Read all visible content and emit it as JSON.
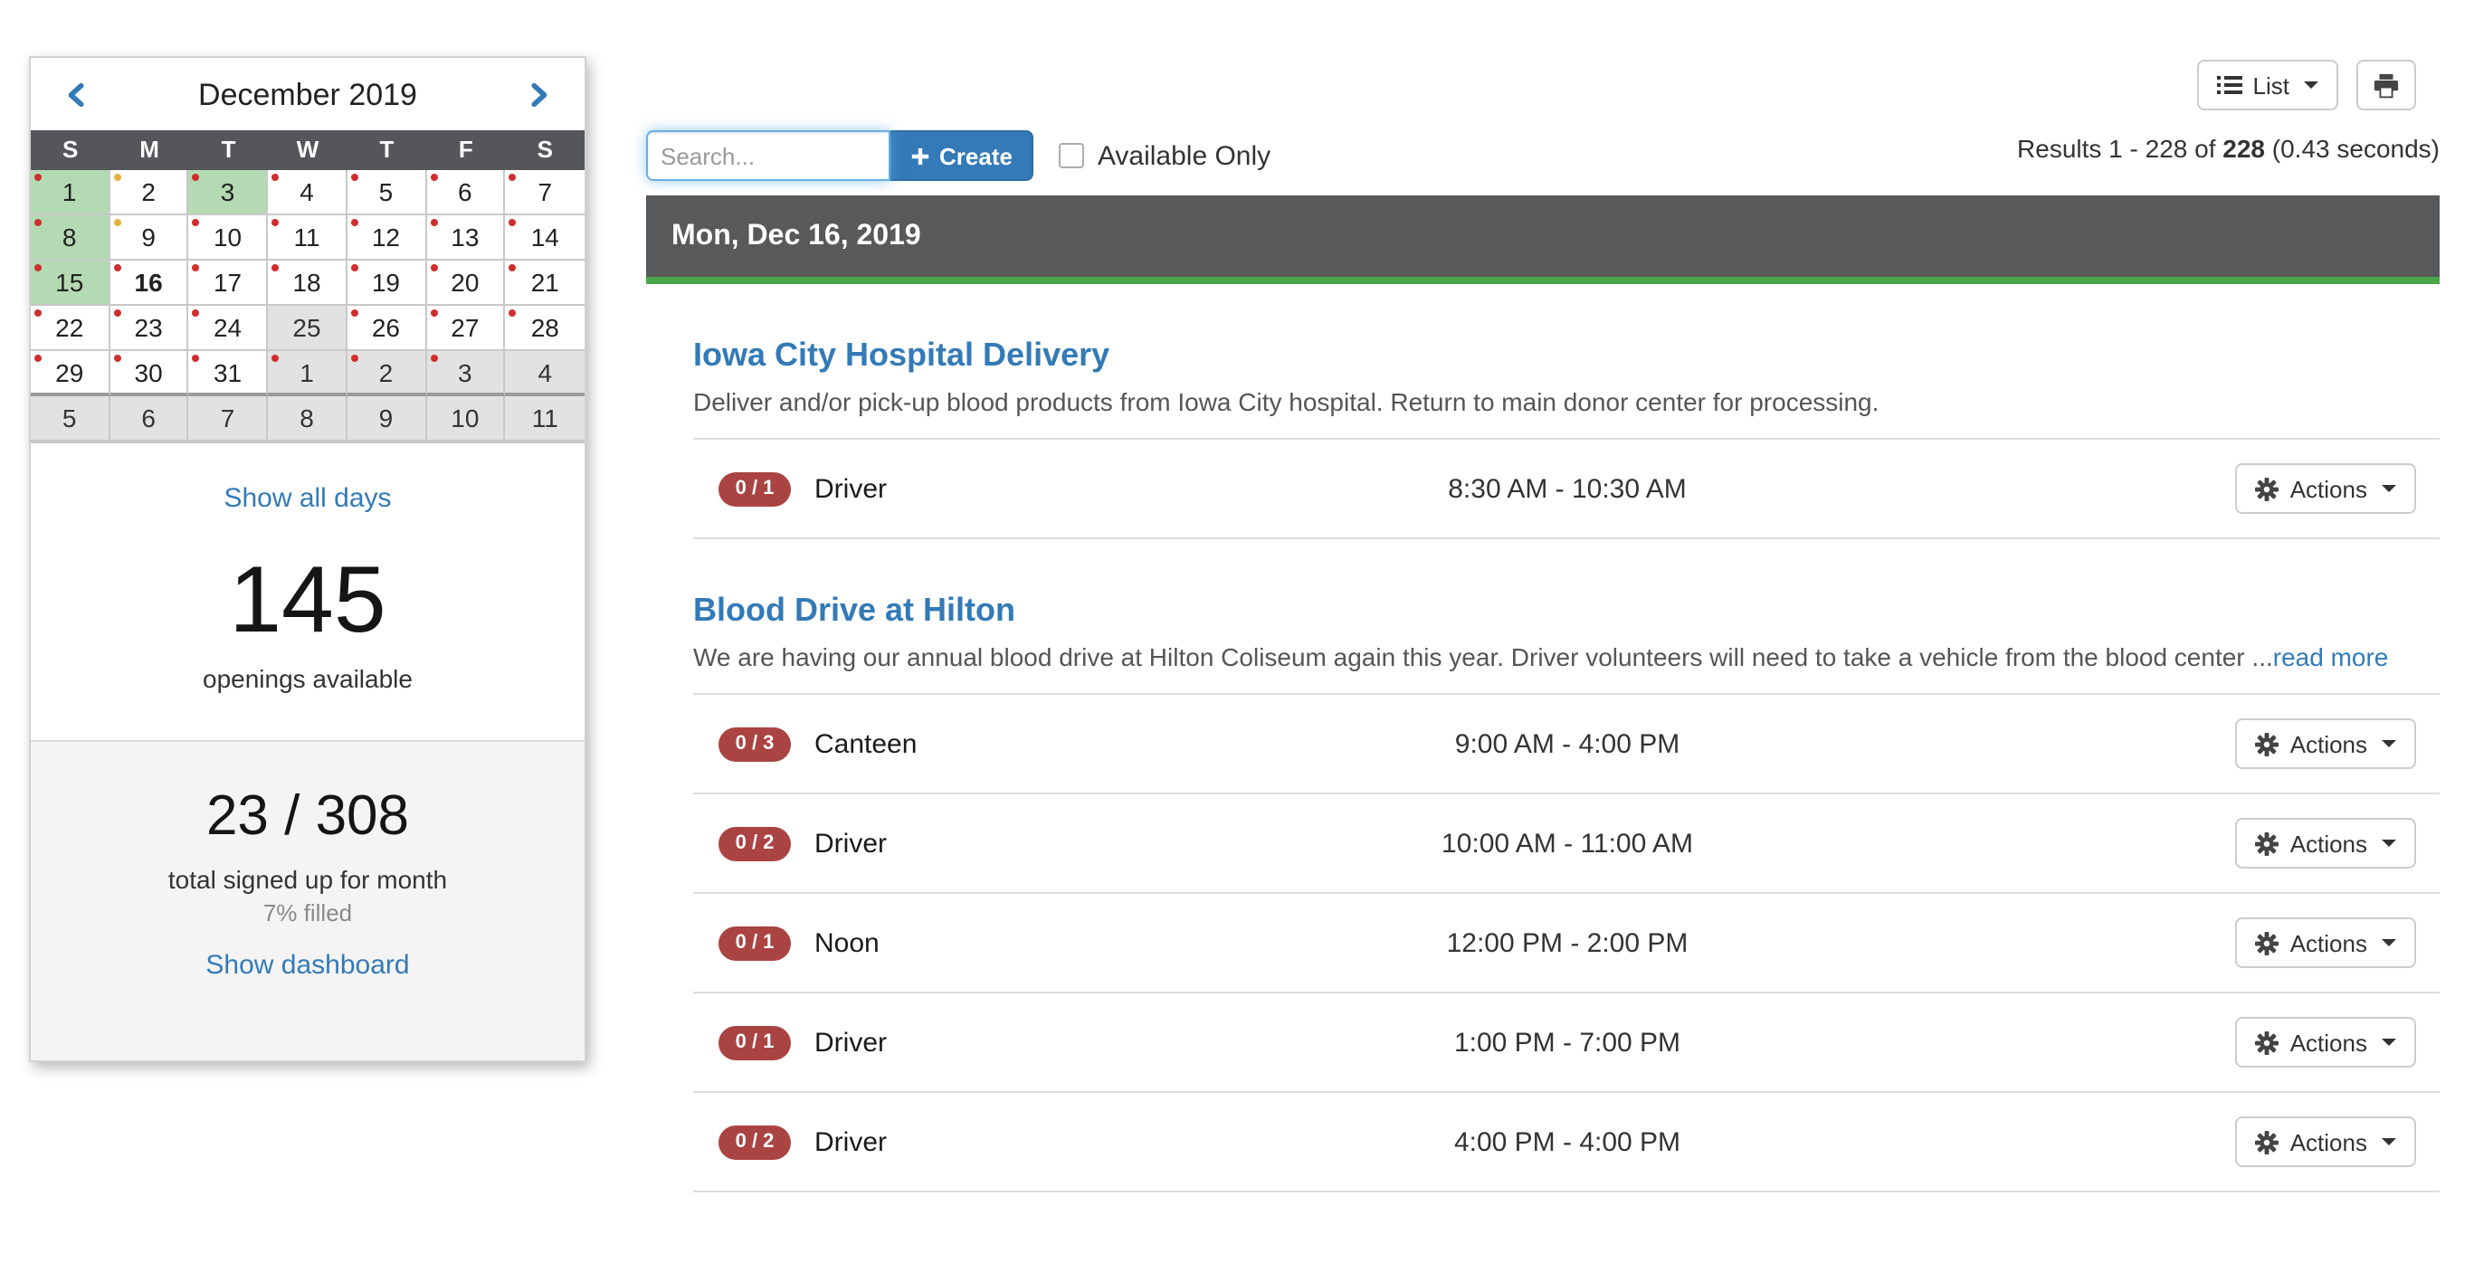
{
  "colors": {
    "accent_green": "#48a648",
    "badge_red": "#a94442",
    "link_blue": "#337ab7",
    "header_gray": "#58595b",
    "available_day_green": "#b4dab4",
    "inactive_day_gray": "#e2e2e2",
    "dot_red": "#cf2e2e",
    "dot_yellow": "#e8b23a",
    "create_button_blue": "#337ab7"
  },
  "labels": {
    "actions": "Actions"
  },
  "toolbar": {
    "view_button_label": "List",
    "results_prefix": "Results 1 - 228 of ",
    "results_total": "228",
    "results_suffix": " (0.43 seconds)",
    "search_placeholder": "Search...",
    "create_label": "Create",
    "available_only_label": "Available Only"
  },
  "calendar": {
    "title": "December 2019",
    "day_headers": [
      "S",
      "M",
      "T",
      "W",
      "T",
      "F",
      "S"
    ],
    "weeks": [
      [
        {
          "d": "1",
          "type": "green",
          "dots": [
            "red"
          ]
        },
        {
          "d": "2",
          "type": "day",
          "dots": [
            "yellow"
          ]
        },
        {
          "d": "3",
          "type": "green",
          "dots": [
            "red"
          ]
        },
        {
          "d": "4",
          "type": "day",
          "dots": [
            "red"
          ]
        },
        {
          "d": "5",
          "type": "day",
          "dots": [
            "red"
          ]
        },
        {
          "d": "6",
          "type": "day",
          "dots": [
            "red"
          ]
        },
        {
          "d": "7",
          "type": "day",
          "dots": [
            "red"
          ]
        }
      ],
      [
        {
          "d": "8",
          "type": "green",
          "dots": [
            "red"
          ]
        },
        {
          "d": "9",
          "type": "day",
          "dots": [
            "yellow"
          ]
        },
        {
          "d": "10",
          "type": "day",
          "dots": [
            "red"
          ]
        },
        {
          "d": "11",
          "type": "day",
          "dots": [
            "red"
          ]
        },
        {
          "d": "12",
          "type": "day",
          "dots": [
            "red"
          ]
        },
        {
          "d": "13",
          "type": "day",
          "dots": [
            "red"
          ]
        },
        {
          "d": "14",
          "type": "day",
          "dots": [
            "red"
          ]
        }
      ],
      [
        {
          "d": "15",
          "type": "green",
          "dots": [
            "red"
          ]
        },
        {
          "d": "16",
          "type": "day",
          "today": true,
          "dots": [
            "red"
          ]
        },
        {
          "d": "17",
          "type": "day",
          "dots": [
            "red"
          ]
        },
        {
          "d": "18",
          "type": "day",
          "dots": [
            "red"
          ]
        },
        {
          "d": "19",
          "type": "day",
          "dots": [
            "red"
          ]
        },
        {
          "d": "20",
          "type": "day",
          "dots": [
            "red"
          ]
        },
        {
          "d": "21",
          "type": "day",
          "dots": [
            "red"
          ]
        }
      ],
      [
        {
          "d": "22",
          "type": "day",
          "dots": [
            "red"
          ]
        },
        {
          "d": "23",
          "type": "day",
          "dots": [
            "red"
          ]
        },
        {
          "d": "24",
          "type": "day",
          "dots": [
            "red"
          ]
        },
        {
          "d": "25",
          "type": "gray",
          "dots": []
        },
        {
          "d": "26",
          "type": "day",
          "dots": [
            "red"
          ]
        },
        {
          "d": "27",
          "type": "day",
          "dots": [
            "red"
          ]
        },
        {
          "d": "28",
          "type": "day",
          "dots": [
            "red"
          ]
        }
      ],
      [
        {
          "d": "29",
          "type": "day",
          "dots": [
            "red"
          ]
        },
        {
          "d": "30",
          "type": "day",
          "dots": [
            "red"
          ]
        },
        {
          "d": "31",
          "type": "day",
          "dots": [
            "red"
          ]
        },
        {
          "d": "1",
          "type": "gray",
          "dots": [
            "red"
          ]
        },
        {
          "d": "2",
          "type": "gray",
          "dots": [
            "red"
          ]
        },
        {
          "d": "3",
          "type": "gray",
          "dots": [
            "red"
          ]
        },
        {
          "d": "4",
          "type": "gray",
          "dots": []
        }
      ],
      [
        {
          "d": "5",
          "type": "gray",
          "dots": []
        },
        {
          "d": "6",
          "type": "gray",
          "dots": []
        },
        {
          "d": "7",
          "type": "gray",
          "dots": []
        },
        {
          "d": "8",
          "type": "gray",
          "dots": []
        },
        {
          "d": "9",
          "type": "gray",
          "dots": []
        },
        {
          "d": "10",
          "type": "gray",
          "dots": []
        },
        {
          "d": "11",
          "type": "gray",
          "dots": []
        }
      ]
    ],
    "show_all_days": "Show all days",
    "openings_count": "145",
    "openings_label": "openings available",
    "signed_up": "23 / 308",
    "signed_up_label": "total signed up for month",
    "filled_label": "7% filled",
    "show_dashboard": "Show dashboard"
  },
  "day_group": {
    "date_label": "Mon, Dec 16, 2019",
    "events": [
      {
        "title": "Iowa City Hospital Delivery",
        "description": "Deliver and/or pick-up blood products from Iowa City hospital. Return to main donor center for processing.",
        "read_more": null,
        "slots": [
          {
            "badge": "0 / 1",
            "role": "Driver",
            "time": "8:30 AM - 10:30 AM"
          }
        ]
      },
      {
        "title": "Blood Drive at Hilton",
        "description": "We are having our annual blood drive at Hilton Coliseum again this year. Driver volunteers will need to take a vehicle from the blood center ...",
        "read_more": "read more",
        "slots": [
          {
            "badge": "0 / 3",
            "role": "Canteen",
            "time": "9:00 AM - 4:00 PM"
          },
          {
            "badge": "0 / 2",
            "role": "Driver",
            "time": "10:00 AM - 11:00 AM"
          },
          {
            "badge": "0 / 1",
            "role": "Noon",
            "time": "12:00 PM - 2:00 PM"
          },
          {
            "badge": "0 / 1",
            "role": "Driver",
            "time": "1:00 PM - 7:00 PM"
          },
          {
            "badge": "0 / 2",
            "role": "Driver",
            "time": "4:00 PM - 4:00 PM"
          }
        ]
      }
    ]
  }
}
